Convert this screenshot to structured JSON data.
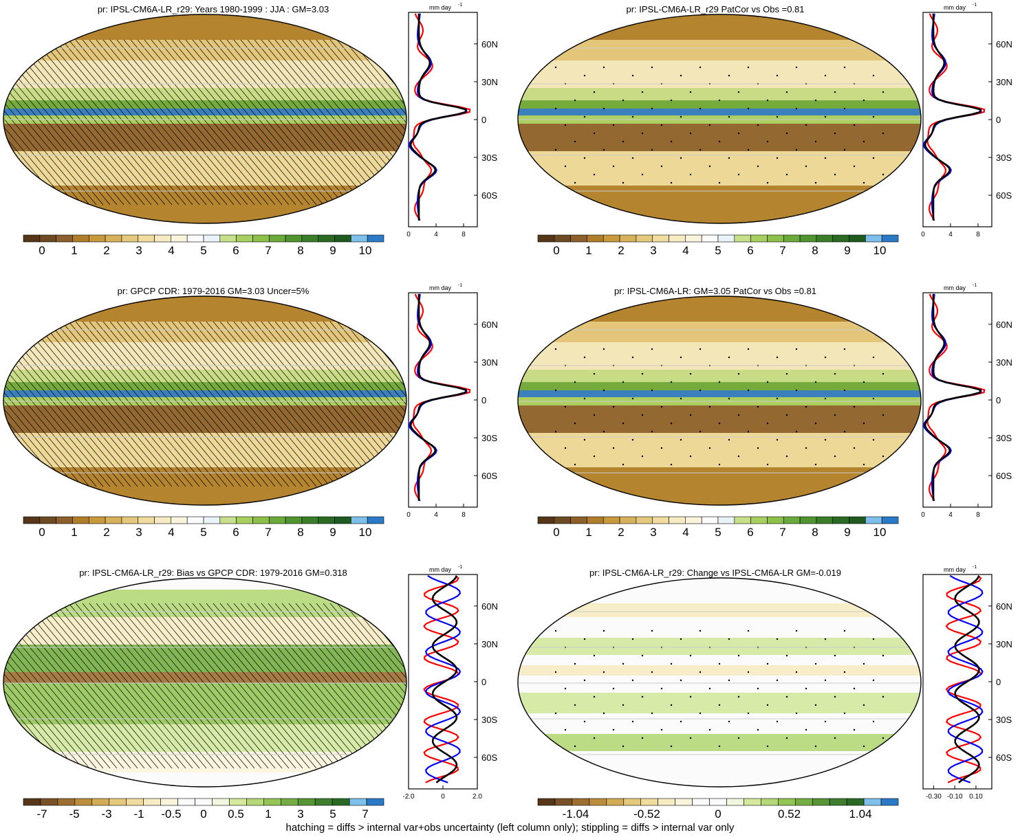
{
  "footnote": "hatching = diffs > internal var+obs uncertainty (left column only); stippling = diffs > internal var only",
  "zonal_units": "mm day",
  "zonal_units_exp": "-1",
  "lat_labels": [
    "60N",
    "30N",
    "0",
    "30S",
    "60S"
  ],
  "colors": {
    "brown_dark": "#5a3a1a",
    "green": "#6aaa3a",
    "blue": "#2a7ac8",
    "line_red": "#ff0000",
    "line_blue": "#0000ff",
    "line_black": "#000000"
  },
  "panels": [
    {
      "title": "pr: IPSL-CM6A-LR_r29: Years 1980-1999 : JJA : GM=3.03",
      "colorbar_labels": [
        "0",
        "1",
        "2",
        "3",
        "4",
        "5",
        "6",
        "7",
        "8",
        "9",
        "10"
      ],
      "colorbar_type": "abs",
      "zonal_ticks": [
        "0",
        "4",
        "8"
      ],
      "zonal_xrange": [
        0,
        10
      ],
      "pattern": "hatch"
    },
    {
      "title": "pr: IPSL-CM6A-LR_r29 PatCor vs Obs =0.81",
      "colorbar_labels": [
        "0",
        "1",
        "2",
        "3",
        "4",
        "5",
        "6",
        "7",
        "8",
        "9",
        "10"
      ],
      "colorbar_type": "abs",
      "zonal_ticks": [
        "0",
        "4",
        "8"
      ],
      "zonal_xrange": [
        0,
        10
      ],
      "pattern": "stipple"
    },
    {
      "title": "pr: GPCP CDR: 1979-2016 GM=3.03 Uncer=5%",
      "colorbar_labels": [
        "0",
        "1",
        "2",
        "3",
        "4",
        "5",
        "6",
        "7",
        "8",
        "9",
        "10"
      ],
      "colorbar_type": "abs",
      "zonal_ticks": [
        "0",
        "4",
        "8"
      ],
      "zonal_xrange": [
        0,
        10
      ],
      "pattern": "hatch"
    },
    {
      "title": "pr: IPSL-CM6A-LR: GM=3.05 PatCor vs Obs =0.81",
      "colorbar_labels": [
        "0",
        "1",
        "2",
        "3",
        "4",
        "5",
        "6",
        "7",
        "8",
        "9",
        "10"
      ],
      "colorbar_type": "abs",
      "zonal_ticks": [
        "0",
        "4",
        "8"
      ],
      "zonal_xrange": [
        0,
        10
      ],
      "pattern": "stipple"
    },
    {
      "title": "pr: IPSL-CM6A-LR_r29: Bias vs GPCP CDR: 1979-2016 GM=0.318",
      "colorbar_labels": [
        "-7",
        "-5",
        "-3",
        "-1",
        "-0.5",
        "0",
        "0.5",
        "1",
        "3",
        "5",
        "7"
      ],
      "colorbar_type": "diff",
      "zonal_ticks": [
        "-2.0",
        "0",
        "2.0"
      ],
      "zonal_xrange": [
        -2,
        2
      ],
      "pattern": "hatch"
    },
    {
      "title": "pr: IPSL-CM6A-LR_r29: Change vs IPSL-CM6A-LR GM=-0.019",
      "colorbar_labels": [
        "-1.04",
        "-0.52",
        "0",
        "0.52",
        "1.04"
      ],
      "colorbar_type": "diff2",
      "zonal_ticks": [
        "-0.30",
        "-0.10",
        "0.10"
      ],
      "zonal_xrange": [
        -0.4,
        0.25
      ],
      "pattern": "stipple"
    }
  ]
}
